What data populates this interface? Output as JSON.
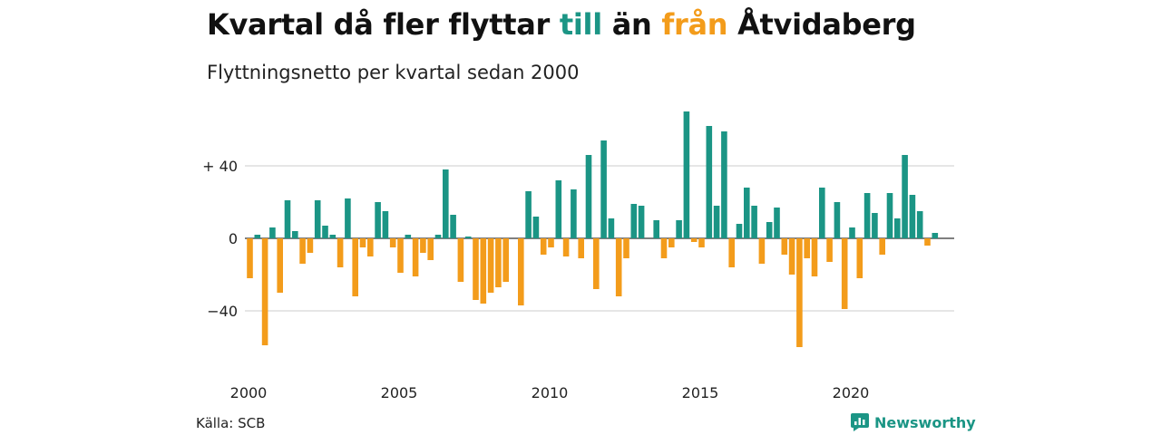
{
  "title": {
    "part1": "Kvartal då fler flyttar ",
    "part2": "till",
    "part3": " än ",
    "part4": "från",
    "part5": " Åtvidaberg"
  },
  "subtitle": "Flyttningsnetto per kvartal sedan 2000",
  "source": "Källa: SCB",
  "brand": "Newsworthy",
  "colors": {
    "positive": "#1b9585",
    "negative": "#f39c1b",
    "grid": "#dddddd"
  },
  "chart_data": {
    "type": "bar",
    "title": "Kvartal då fler flyttar till än från Åtvidaberg",
    "subtitle": "Flyttningsnetto per kvartal sedan 2000",
    "x_start": "2000 Q1",
    "x_ticks": [
      2000,
      2005,
      2010,
      2015,
      2020
    ],
    "y_ticks": [
      {
        "value": 40,
        "label": "+ 40"
      },
      {
        "value": 0,
        "label": "0"
      },
      {
        "value": -40,
        "label": "−40"
      }
    ],
    "ylim": [
      -65,
      72
    ],
    "grid": true,
    "values": [
      -22,
      2,
      -59,
      6,
      -30,
      21,
      4,
      -14,
      -8,
      21,
      7,
      2,
      -16,
      22,
      -32,
      -5,
      -10,
      20,
      15,
      -5,
      -19,
      2,
      -21,
      -8,
      -12,
      2,
      38,
      13,
      -24,
      1,
      -34,
      -36,
      -30,
      -27,
      -24,
      0,
      -37,
      26,
      12,
      -9,
      -5,
      32,
      -10,
      27,
      -11,
      46,
      -28,
      54,
      11,
      -32,
      -11,
      19,
      18,
      0,
      10,
      -11,
      -5,
      10,
      70,
      -2,
      -5,
      62,
      18,
      59,
      -16,
      8,
      28,
      18,
      -14,
      9,
      17,
      -9,
      -20,
      -60,
      -11,
      -21,
      28,
      -13,
      20,
      -39,
      6,
      -22,
      25,
      14,
      -9,
      25,
      11,
      46,
      24,
      15,
      -4,
      3
    ]
  }
}
